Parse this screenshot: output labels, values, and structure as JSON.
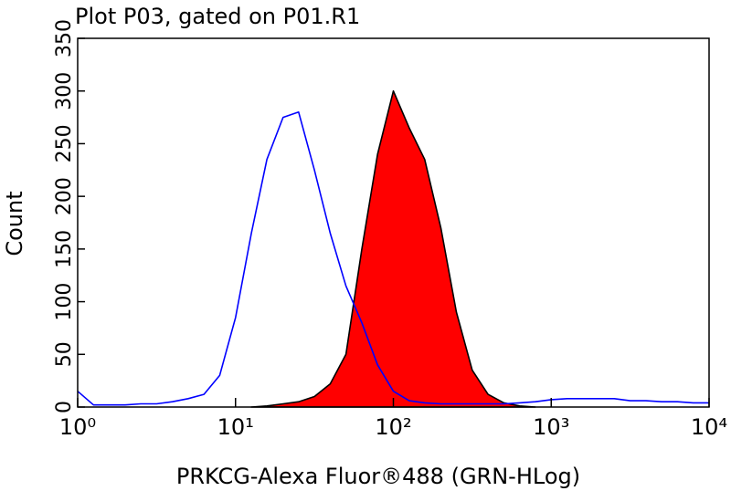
{
  "chart_data": {
    "type": "histogram-overlay",
    "title": "Plot P03, gated on P01.R1",
    "x_label": "PRKCG-Alexa Fluor®488 (GRN-HLog)",
    "y_label": "Count",
    "x_scale": "log",
    "xlim": [
      1,
      10000
    ],
    "ylim": [
      0,
      350
    ],
    "xticks": [
      {
        "value": 1,
        "label": "10⁰"
      },
      {
        "value": 10,
        "label": "10¹"
      },
      {
        "value": 100,
        "label": "10²"
      },
      {
        "value": 1000,
        "label": "10³"
      },
      {
        "value": 10000,
        "label": "10⁴"
      }
    ],
    "yticks": [
      0,
      50,
      100,
      150,
      200,
      250,
      300,
      350
    ],
    "x": [
      1,
      1.26,
      1.58,
      2,
      2.51,
      3.16,
      3.98,
      5.01,
      6.31,
      7.94,
      10,
      12.6,
      15.8,
      20,
      25.1,
      31.6,
      39.8,
      50.1,
      63.1,
      79.4,
      100,
      126,
      158,
      200,
      251,
      316,
      398,
      501,
      631,
      794,
      1000,
      1260,
      1580,
      2000,
      2510,
      3160,
      3980,
      5010,
      6310,
      7940,
      10000
    ],
    "series": [
      {
        "color": "#ff0000",
        "outline": "#000000",
        "filled": true,
        "values": [
          null,
          null,
          null,
          null,
          null,
          null,
          null,
          null,
          null,
          null,
          null,
          0,
          1,
          3,
          5,
          10,
          22,
          50,
          150,
          240,
          300,
          265,
          235,
          170,
          90,
          35,
          12,
          4,
          1,
          0,
          null,
          null,
          null,
          null,
          null,
          null,
          null,
          null,
          null,
          null,
          null
        ]
      },
      {
        "color": "#0000ff",
        "filled": false,
        "values": [
          15,
          2,
          2,
          2,
          3,
          3,
          5,
          8,
          12,
          30,
          85,
          165,
          235,
          275,
          280,
          225,
          165,
          115,
          80,
          40,
          15,
          6,
          4,
          3,
          3,
          3,
          3,
          3,
          4,
          5,
          7,
          8,
          8,
          8,
          8,
          6,
          6,
          5,
          5,
          4,
          4
        ]
      }
    ]
  }
}
